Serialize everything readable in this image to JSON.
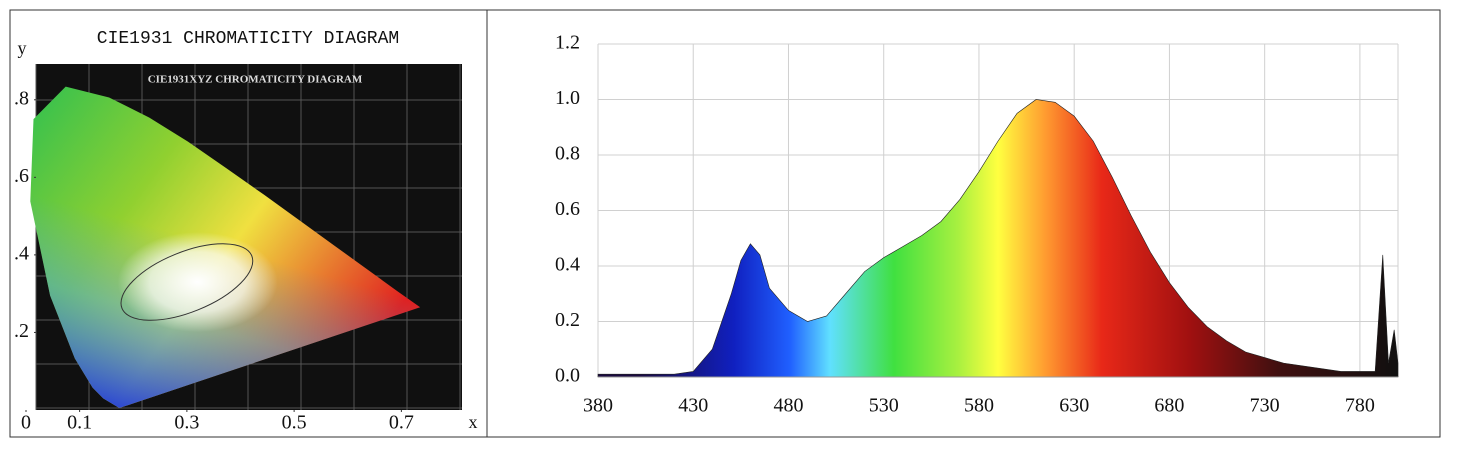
{
  "chart_data": [
    {
      "type": "chromaticity",
      "title": "CIE1931 CHROMATICITY DIAGRAM",
      "inner_title": "CIE1931XYZ CHROMATICITY DIAGRAM",
      "xlabel": "x",
      "ylabel": "y",
      "xlim": [
        0,
        0.8
      ],
      "ylim": [
        0,
        0.9
      ],
      "xticks": [
        {
          "value": 0,
          "label": "0"
        },
        0.1,
        0.3,
        0.5,
        0.7
      ],
      "yticks": [
        {
          "value": 0.2,
          "label": ".2"
        },
        {
          "value": 0.4,
          "label": ".4"
        },
        {
          "value": 0.6,
          "label": ".6"
        },
        {
          "value": 0.8,
          "label": ".8"
        }
      ]
    },
    {
      "type": "line",
      "xlim": [
        380,
        800
      ],
      "ylim": [
        0,
        1.2
      ],
      "xticks": [
        380,
        430,
        480,
        530,
        580,
        630,
        680,
        730,
        780
      ],
      "yticks": [
        {
          "value": 0,
          "label": "0.0"
        },
        0.2,
        0.4,
        0.6,
        0.8,
        {
          "value": 1,
          "label": "1.0"
        },
        1.2
      ],
      "grid": true,
      "x": [
        380,
        390,
        400,
        410,
        420,
        430,
        440,
        450,
        455,
        460,
        465,
        470,
        480,
        490,
        500,
        510,
        520,
        530,
        540,
        550,
        560,
        570,
        580,
        590,
        600,
        610,
        620,
        630,
        640,
        650,
        660,
        670,
        680,
        690,
        700,
        710,
        720,
        730,
        740,
        750,
        760,
        770,
        780,
        788,
        792,
        795,
        798,
        800
      ],
      "values": [
        0.01,
        0.01,
        0.01,
        0.01,
        0.01,
        0.02,
        0.1,
        0.3,
        0.42,
        0.48,
        0.44,
        0.32,
        0.24,
        0.2,
        0.22,
        0.3,
        0.38,
        0.43,
        0.47,
        0.51,
        0.56,
        0.64,
        0.74,
        0.85,
        0.95,
        1.0,
        0.99,
        0.94,
        0.85,
        0.72,
        0.58,
        0.45,
        0.34,
        0.25,
        0.18,
        0.13,
        0.09,
        0.07,
        0.05,
        0.04,
        0.03,
        0.02,
        0.02,
        0.02,
        0.44,
        0.05,
        0.17,
        0.05
      ]
    }
  ]
}
